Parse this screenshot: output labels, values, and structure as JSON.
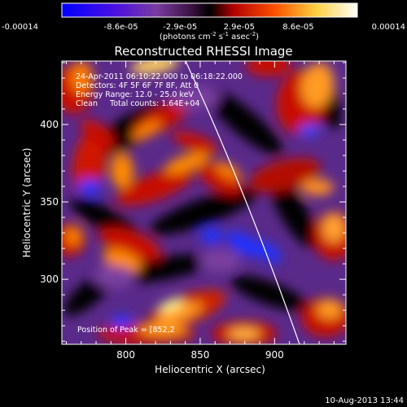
{
  "colorbar": {
    "ticks": [
      "-0.00014",
      "-8.6e-05",
      "-2.9e-05",
      "2.9e-05",
      "8.6e-05",
      "0.00014"
    ],
    "unit_main": "(photons cm",
    "unit_exp1": "-2",
    "unit_mid": " s",
    "unit_exp2": "-1",
    "unit_end": " asec",
    "unit_exp3": "-2",
    "unit_close": ")",
    "colors": [
      "#0000ff",
      "#5a00c8",
      "#7a3ca0",
      "#000000",
      "#c80000",
      "#ff8000",
      "#ffff80",
      "#ffffff"
    ]
  },
  "title": "Reconstructed RHESSI Image",
  "info": {
    "line1": "24-Apr-2011 06:10:22.000 to 06:18:22.000",
    "line2": "Detectors: 4F 5F 6F 7F 8F, Att 0",
    "line3": "Energy Range: 12.0 - 25.0 keV",
    "line4": "Clean     Total counts: 1.64E+04"
  },
  "peak_label": "Position of Peak = [852,2",
  "x_axis": {
    "label": "Heliocentric X (arcsec)",
    "ticks": [
      {
        "v": 800,
        "t": "800"
      },
      {
        "v": 850,
        "t": "850"
      },
      {
        "v": 900,
        "t": "900"
      }
    ],
    "range": [
      757,
      948
    ]
  },
  "y_axis": {
    "label": "Heliocentric Y (arcsec)",
    "ticks": [
      {
        "v": 300,
        "t": "300"
      },
      {
        "v": 350,
        "t": "350"
      },
      {
        "v": 400,
        "t": "400"
      }
    ],
    "range": [
      258,
      441
    ]
  },
  "timestamp": "10-Aug-2013 13:44"
}
